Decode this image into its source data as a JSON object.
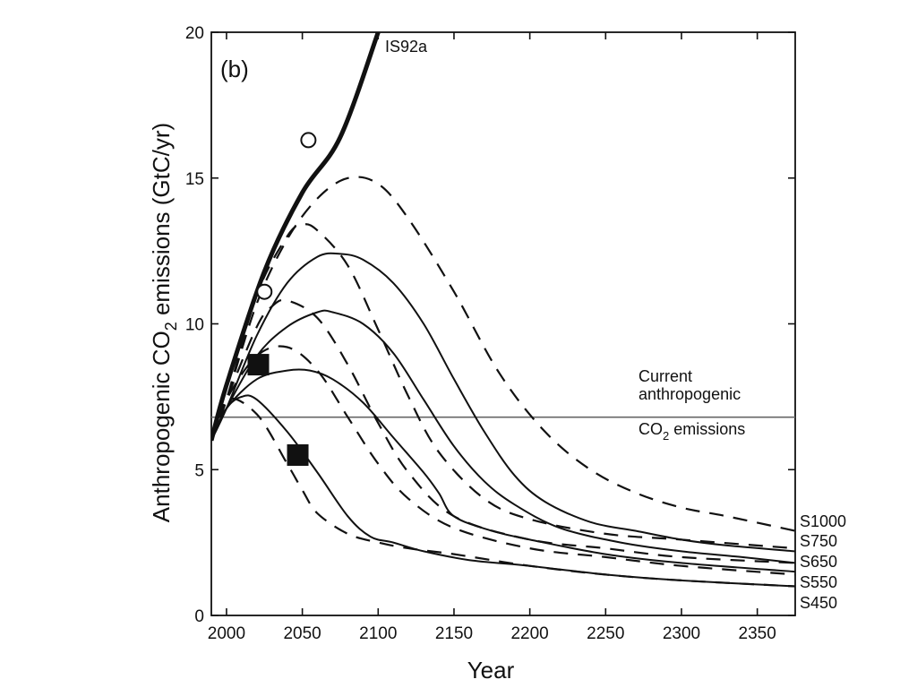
{
  "chart_data": {
    "type": "line",
    "panel_label": "(b)",
    "xlabel": "Year",
    "ylabel_parts": [
      "Anthropogenic CO",
      "2",
      " emissions (GtC/yr)"
    ],
    "xlim": [
      1990,
      2375
    ],
    "ylim": [
      0,
      20
    ],
    "x_ticks": [
      2000,
      2050,
      2100,
      2150,
      2200,
      2250,
      2300,
      2350
    ],
    "y_ticks": [
      0,
      5,
      10,
      15,
      20
    ],
    "x_tick_labels": [
      "2000",
      "2050",
      "2100",
      "2150",
      "2200",
      "2250",
      "2300",
      "2350"
    ],
    "y_tick_labels": [
      "0",
      "5",
      "10",
      "15",
      "20"
    ],
    "reference_line": {
      "value": 6.8,
      "label_lines": [
        "Current",
        "anthropogenic"
      ],
      "label_below_parts": [
        "CO",
        "2",
        " emissions"
      ]
    },
    "series": [
      {
        "name": "IS92a",
        "style": "thick",
        "x": [
          1990,
          2000,
          2025,
          2050,
          2075,
          2100
        ],
        "y": [
          6.0,
          7.9,
          11.8,
          14.5,
          16.4,
          20.0
        ]
      },
      {
        "name": "S1000",
        "style": "dashed",
        "x": [
          1990,
          2000,
          2020,
          2040,
          2060,
          2080,
          2100,
          2120,
          2150,
          2180,
          2210,
          2240,
          2270,
          2300,
          2330,
          2375
        ],
        "y": [
          6.0,
          7.4,
          10.7,
          12.9,
          14.3,
          15.0,
          14.8,
          13.6,
          11.1,
          8.3,
          6.3,
          5.0,
          4.2,
          3.7,
          3.4,
          2.9
        ]
      },
      {
        "name": "S750",
        "style": "dashed",
        "x": [
          1990,
          2000,
          2020,
          2040,
          2050,
          2060,
          2080,
          2100,
          2120,
          2140,
          2170,
          2200,
          2250,
          2300,
          2375
        ],
        "y": [
          6.0,
          7.4,
          11.0,
          13.0,
          13.4,
          13.2,
          12.0,
          9.8,
          7.5,
          5.6,
          4.0,
          3.3,
          2.8,
          2.6,
          2.3
        ]
      },
      {
        "name": "S650",
        "style": "dashed",
        "x": [
          1990,
          2000,
          2020,
          2030,
          2040,
          2060,
          2080,
          2100,
          2120,
          2150,
          2200,
          2250,
          2300,
          2375
        ],
        "y": [
          6.0,
          7.4,
          9.9,
          10.6,
          10.8,
          10.2,
          8.6,
          6.6,
          4.9,
          3.4,
          2.6,
          2.3,
          2.0,
          1.8
        ]
      },
      {
        "name": "S550",
        "style": "dashed",
        "x": [
          1990,
          2000,
          2020,
          2040,
          2060,
          2080,
          2100,
          2120,
          2150,
          2200,
          2250,
          2300,
          2375
        ],
        "y": [
          6.0,
          7.4,
          8.9,
          9.2,
          8.4,
          6.8,
          5.2,
          4.0,
          3.0,
          2.3,
          2.0,
          1.7,
          1.4
        ]
      },
      {
        "name": "S450",
        "style": "dashed",
        "x": [
          1990,
          2000,
          2020,
          2040,
          2050,
          2060,
          2080,
          2100,
          2120,
          2150,
          2200,
          2250,
          2300,
          2375
        ],
        "y": [
          6.0,
          7.4,
          6.9,
          5.2,
          4.3,
          3.5,
          2.8,
          2.5,
          2.3,
          2.1,
          1.7,
          1.4,
          1.2,
          1.0
        ]
      },
      {
        "name": "S1000",
        "style": "solid",
        "x": [
          1990,
          2000,
          2020,
          2040,
          2060,
          2075,
          2090,
          2110,
          2130,
          2150,
          2170,
          2190,
          2210,
          2240,
          2270,
          2300,
          2330,
          2375
        ],
        "y": [
          6.0,
          7.1,
          9.6,
          11.4,
          12.3,
          12.4,
          12.2,
          11.4,
          10.0,
          8.1,
          6.3,
          4.8,
          3.9,
          3.2,
          2.9,
          2.6,
          2.4,
          2.2
        ]
      },
      {
        "name": "S750",
        "style": "solid",
        "x": [
          1990,
          2000,
          2020,
          2040,
          2060,
          2070,
          2090,
          2110,
          2130,
          2150,
          2170,
          2190,
          2220,
          2260,
          2300,
          2340,
          2375
        ],
        "y": [
          6.0,
          7.1,
          8.9,
          9.9,
          10.4,
          10.4,
          10.0,
          9.0,
          7.4,
          5.8,
          4.6,
          3.8,
          3.0,
          2.5,
          2.2,
          2.0,
          1.8
        ]
      },
      {
        "name": "S650",
        "style": "solid",
        "x": [
          1990,
          2000,
          2020,
          2040,
          2055,
          2070,
          2090,
          2110,
          2130,
          2140,
          2150,
          2175,
          2200,
          2250,
          2300,
          2375
        ],
        "y": [
          6.0,
          7.1,
          8.1,
          8.4,
          8.4,
          8.1,
          7.3,
          6.1,
          4.9,
          4.2,
          3.4,
          2.9,
          2.6,
          2.1,
          1.8,
          1.5
        ]
      },
      {
        "name": "S550",
        "style": "solid",
        "x": [
          1990,
          2000,
          2010,
          2020,
          2040,
          2060,
          2080,
          2095,
          2110,
          2130,
          2160,
          2200,
          2250,
          2300,
          2375
        ],
        "y": [
          6.0,
          7.1,
          7.5,
          7.4,
          6.3,
          4.9,
          3.4,
          2.7,
          2.5,
          2.2,
          1.9,
          1.7,
          1.4,
          1.2,
          1.0
        ]
      }
    ],
    "markers": [
      {
        "shape": "circle",
        "x": 2054,
        "y": 16.3
      },
      {
        "shape": "circle",
        "x": 2025,
        "y": 11.1
      },
      {
        "shape": "square",
        "x": 2021,
        "y": 8.6
      },
      {
        "shape": "square",
        "x": 2047,
        "y": 5.5
      }
    ],
    "right_labels": [
      "S1000",
      "S750",
      "S650",
      "S550",
      "S450"
    ],
    "top_label": "IS92a",
    "grid": false
  }
}
